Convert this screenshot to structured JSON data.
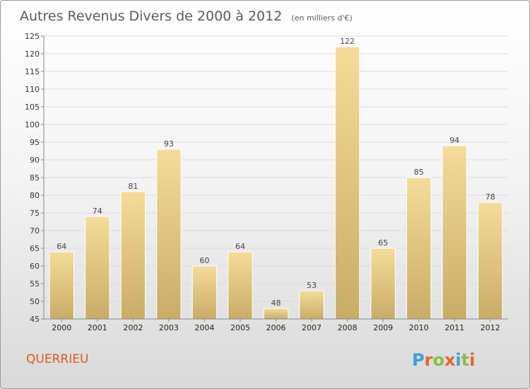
{
  "chart_data": {
    "type": "bar",
    "title": "Autres Revenus Divers de 2000 à 2012",
    "subtitle": "(en milliers d'€)",
    "categories": [
      "2000",
      "2001",
      "2002",
      "2003",
      "2004",
      "2005",
      "2006",
      "2007",
      "2008",
      "2009",
      "2010",
      "2011",
      "2012"
    ],
    "values": [
      64,
      74,
      81,
      93,
      60,
      64,
      48,
      53,
      122,
      65,
      85,
      94,
      78
    ],
    "ylim": [
      45,
      125
    ],
    "yticks": [
      45,
      50,
      55,
      60,
      65,
      70,
      75,
      80,
      85,
      90,
      95,
      100,
      105,
      110,
      115,
      120,
      125
    ],
    "grid": true,
    "xlabel": "",
    "ylabel": "",
    "bar_color_light": "#f5dc9a",
    "bar_color_dark": "#c9ac66"
  },
  "footer": {
    "commune": "QUERRIEU",
    "logo_letters": [
      "P",
      "r",
      "o",
      "x",
      "i",
      "t",
      "i"
    ],
    "logo_colors": [
      "#3aa0dc",
      "#e7652c",
      "#8bbf3c",
      "#e7652c",
      "#3aa0dc",
      "#8bbf3c",
      "#e7652c"
    ]
  }
}
